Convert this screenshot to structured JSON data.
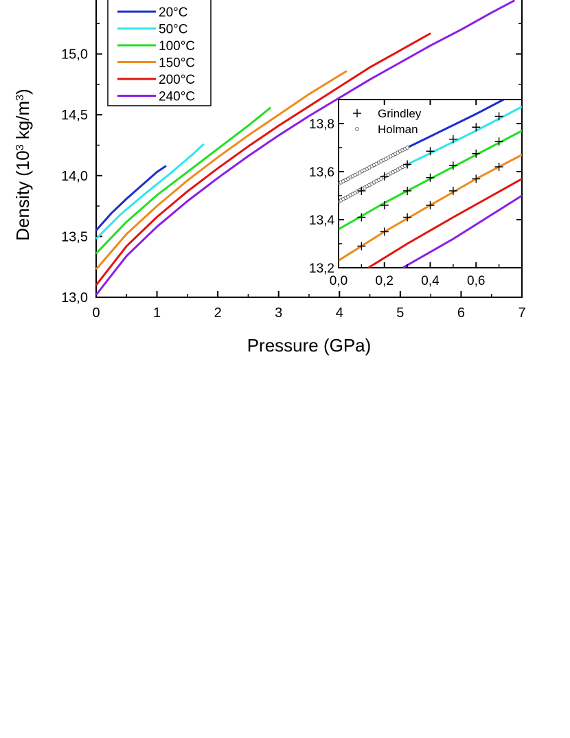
{
  "chart_data": [
    {
      "type": "line",
      "title": "",
      "xlabel": "Pressure (GPa)",
      "ylabel_parts": {
        "pre": "Density (10",
        "sup1": "3",
        "mid": " kg/m",
        "sup2": "3",
        "post": ")"
      },
      "xlim": [
        0,
        7
      ],
      "ylim": [
        13.0,
        15.5
      ],
      "x_ticks": [
        "0",
        "1",
        "2",
        "3",
        "4",
        "5",
        "6",
        "7"
      ],
      "y_ticks": [
        "13,0",
        "13,5",
        "14,0",
        "14,5",
        "15,0"
      ],
      "grid": false,
      "legend_position": "top-left",
      "series": [
        {
          "name": "20°C",
          "color": "#1a2fcf",
          "x": [
            0,
            0.25,
            0.5,
            0.75,
            1.0,
            1.15
          ],
          "y": [
            13.55,
            13.69,
            13.81,
            13.92,
            14.03,
            14.08
          ]
        },
        {
          "name": "50°C",
          "color": "#2ee6f0",
          "x": [
            0,
            0.4,
            0.8,
            1.2,
            1.6,
            1.77
          ],
          "y": [
            13.48,
            13.68,
            13.85,
            14.01,
            14.18,
            14.26
          ]
        },
        {
          "name": "100°C",
          "color": "#22e022",
          "x": [
            0,
            0.5,
            1.0,
            1.5,
            2.0,
            2.5,
            2.87
          ],
          "y": [
            13.36,
            13.62,
            13.84,
            14.03,
            14.22,
            14.41,
            14.56
          ]
        },
        {
          "name": "150°C",
          "color": "#f08a1c",
          "x": [
            0,
            0.5,
            1.0,
            1.5,
            2.0,
            2.5,
            3.0,
            3.5,
            4.12
          ],
          "y": [
            13.23,
            13.52,
            13.75,
            13.96,
            14.15,
            14.33,
            14.5,
            14.67,
            14.86
          ]
        },
        {
          "name": "200°C",
          "color": "#e3140e",
          "x": [
            0,
            0.5,
            1.0,
            1.5,
            2.0,
            2.5,
            3.0,
            3.5,
            4.0,
            4.5,
            5.0,
            5.5
          ],
          "y": [
            13.1,
            13.42,
            13.66,
            13.87,
            14.06,
            14.24,
            14.41,
            14.57,
            14.73,
            14.89,
            15.03,
            15.17
          ]
        },
        {
          "name": "240°C",
          "color": "#8a1ee8",
          "x": [
            0,
            0.5,
            1.0,
            1.5,
            2.0,
            2.5,
            3.0,
            3.5,
            4.0,
            4.5,
            5.0,
            5.5,
            6.0,
            6.5,
            6.88
          ],
          "y": [
            13.02,
            13.34,
            13.58,
            13.79,
            13.98,
            14.16,
            14.33,
            14.49,
            14.64,
            14.79,
            14.93,
            15.07,
            15.2,
            15.34,
            15.44
          ]
        }
      ]
    },
    {
      "type": "line",
      "title": "",
      "xlabel": "",
      "ylabel": "",
      "xlim": [
        0,
        0.8
      ],
      "ylim": [
        13.2,
        13.9
      ],
      "x_ticks": [
        "0,0",
        "0,2",
        "0,4",
        "0,6"
      ],
      "y_ticks": [
        "13,2",
        "13,4",
        "13,6",
        "13,8"
      ],
      "grid": false,
      "legend_position": "top-left",
      "series": [
        {
          "name": "",
          "color": "#1a2fcf",
          "x": [
            0.3,
            0.45,
            0.6,
            0.72
          ],
          "y": [
            13.7,
            13.77,
            13.84,
            13.9
          ]
        },
        {
          "name": "",
          "color": "#2ee6f0",
          "x": [
            0.3,
            0.45,
            0.6,
            0.8
          ],
          "y": [
            13.63,
            13.7,
            13.77,
            13.87
          ]
        },
        {
          "name": "",
          "color": "#22e022",
          "x": [
            0.0,
            0.2,
            0.4,
            0.6,
            0.8
          ],
          "y": [
            13.36,
            13.47,
            13.57,
            13.67,
            13.77
          ]
        },
        {
          "name": "",
          "color": "#f08a1c",
          "x": [
            0.0,
            0.2,
            0.4,
            0.6,
            0.8
          ],
          "y": [
            13.23,
            13.35,
            13.46,
            13.57,
            13.67
          ]
        },
        {
          "name": "",
          "color": "#e3140e",
          "x": [
            0.13,
            0.3,
            0.5,
            0.8
          ],
          "y": [
            13.2,
            13.3,
            13.41,
            13.57
          ]
        },
        {
          "name": "",
          "color": "#8a1ee8",
          "x": [
            0.28,
            0.5,
            0.8
          ],
          "y": [
            13.2,
            13.32,
            13.5
          ]
        }
      ],
      "markers": [
        {
          "name": "Grindley",
          "symbol": "plus",
          "points": [
            [
              0.1,
              13.29
            ],
            [
              0.2,
              13.35
            ],
            [
              0.3,
              13.41
            ],
            [
              0.4,
              13.46
            ],
            [
              0.5,
              13.52
            ],
            [
              0.6,
              13.57
            ],
            [
              0.7,
              13.62
            ],
            [
              0.1,
              13.41
            ],
            [
              0.2,
              13.46
            ],
            [
              0.3,
              13.52
            ],
            [
              0.4,
              13.575
            ],
            [
              0.5,
              13.625
            ],
            [
              0.6,
              13.675
            ],
            [
              0.7,
              13.725
            ],
            [
              0.1,
              13.52
            ],
            [
              0.2,
              13.58
            ],
            [
              0.3,
              13.63
            ],
            [
              0.4,
              13.685
            ],
            [
              0.5,
              13.735
            ],
            [
              0.6,
              13.785
            ],
            [
              0.7,
              13.83
            ]
          ]
        },
        {
          "name": "Holman",
          "symbol": "circle",
          "lines": [
            {
              "x_start": 0.0,
              "x_end": 0.3,
              "count": 30,
              "y_start": 13.55,
              "y_end": 13.7
            },
            {
              "x_start": 0.0,
              "x_end": 0.3,
              "count": 30,
              "y_start": 13.475,
              "y_end": 13.63
            }
          ]
        }
      ]
    }
  ]
}
